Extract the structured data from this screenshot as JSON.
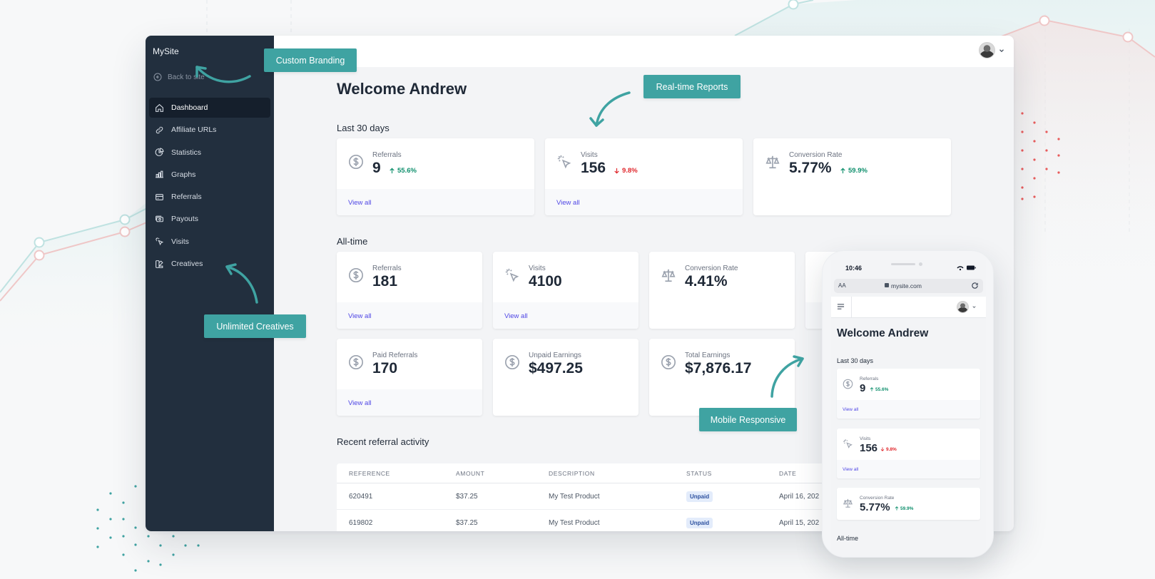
{
  "sidebar": {
    "site_name": "MySite",
    "back_label": "Back to site",
    "items": [
      {
        "label": "Dashboard",
        "icon": "home-icon",
        "active": true
      },
      {
        "label": "Affiliate URLs",
        "icon": "link-icon"
      },
      {
        "label": "Statistics",
        "icon": "pie-chart-icon"
      },
      {
        "label": "Graphs",
        "icon": "bar-chart-icon"
      },
      {
        "label": "Referrals",
        "icon": "credit-card-icon"
      },
      {
        "label": "Payouts",
        "icon": "cash-icon"
      },
      {
        "label": "Visits",
        "icon": "cursor-click-icon"
      },
      {
        "label": "Creatives",
        "icon": "color-swatch-icon"
      }
    ]
  },
  "header": {
    "welcome": "Welcome Andrew"
  },
  "sections": {
    "last30": "Last 30 days",
    "alltime": "All-time",
    "recent": "Recent referral activity"
  },
  "last30_cards": [
    {
      "label": "Referrals",
      "value": "9",
      "delta": "55.6%",
      "trend": "up",
      "link": "View all"
    },
    {
      "label": "Visits",
      "value": "156",
      "delta": "9.8%",
      "trend": "down",
      "link": "View all"
    },
    {
      "label": "Conversion Rate",
      "value": "5.77%",
      "delta": "59.9%",
      "trend": "up"
    }
  ],
  "alltime_cards": [
    {
      "label": "Referrals",
      "value": "181",
      "link": "View all"
    },
    {
      "label": "Visits",
      "value": "4100",
      "link": "View all"
    },
    {
      "label": "Conversion Rate",
      "value": "4.41%"
    },
    {
      "label": "Paid Referrals",
      "value": "170",
      "link": "View all"
    },
    {
      "label": "Unpaid Earnings",
      "value": "$497.25"
    },
    {
      "label": "Total Earnings",
      "value": "$7,876.17"
    }
  ],
  "table": {
    "headers": [
      "REFERENCE",
      "AMOUNT",
      "DESCRIPTION",
      "STATUS",
      "DATE"
    ],
    "rows": [
      [
        "620491",
        "$37.25",
        "My Test Product",
        "Unpaid",
        "April 16, 202"
      ],
      [
        "619802",
        "$37.25",
        "My Test Product",
        "Unpaid",
        "April 15, 202"
      ]
    ]
  },
  "callouts": {
    "branding": "Custom Branding",
    "reports": "Real-time Reports",
    "creatives": "Unlimited Creatives",
    "mobile": "Mobile Responsive"
  },
  "phone": {
    "time": "10:46",
    "aa": "AA",
    "url": "mysite.com",
    "welcome": "Welcome Andrew",
    "last30": "Last 30 days",
    "alltime": "All-time",
    "cards": [
      {
        "label": "Referrals",
        "value": "9",
        "delta": "55.6%",
        "trend": "up",
        "link": "View all"
      },
      {
        "label": "Visits",
        "value": "156",
        "delta": "9.8%",
        "trend": "down",
        "link": "View all"
      },
      {
        "label": "Conversion Rate",
        "value": "5.77%",
        "delta": "59.9%",
        "trend": "up"
      }
    ]
  },
  "colors": {
    "sidebar": "#222f3e",
    "accent_teal": "#3fa3a2",
    "link": "#4f46e5",
    "up": "#0e8f6c",
    "down": "#e0262b"
  }
}
